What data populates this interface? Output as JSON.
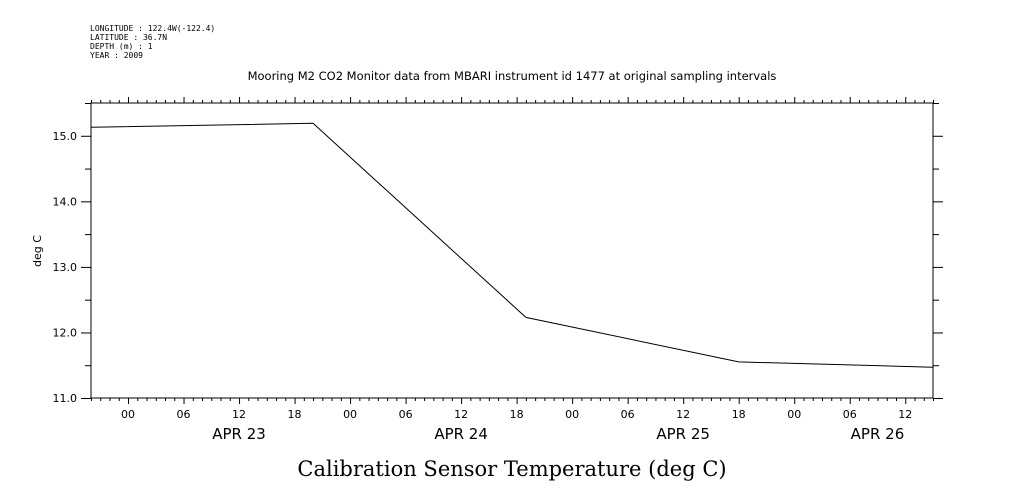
{
  "header": {
    "meta_lines": [
      "LONGITUDE : 122.4W(-122.4)",
      "LATITUDE : 36.7N",
      "DEPTH (m) : 1",
      "YEAR : 2009"
    ],
    "title": "Mooring M2 CO2 Monitor data from MBARI instrument id 1477 at original sampling intervals"
  },
  "footer": {
    "caption": "Calibration Sensor Temperature (deg C)"
  },
  "chart_data": {
    "type": "line",
    "title": "Mooring M2 CO2 Monitor data from MBARI instrument id 1477 at original sampling intervals",
    "ylabel": "deg C",
    "xlabel": "",
    "x_units": "hours since 2009-04-23 00:00",
    "xlim": [
      -4,
      87
    ],
    "ylim": [
      11.0,
      15.5
    ],
    "y_ticks": [
      11.0,
      12.0,
      13.0,
      14.0,
      15.0
    ],
    "y_tick_labels": [
      "11.0",
      "12.0",
      "13.0",
      "14.0",
      "15.0"
    ],
    "x_hour_ticks": [
      0,
      6,
      12,
      18,
      24,
      30,
      36,
      42,
      48,
      54,
      60,
      66,
      72,
      78,
      84
    ],
    "x_hour_labels": [
      "00",
      "06",
      "12",
      "18",
      "00",
      "06",
      "12",
      "18",
      "00",
      "06",
      "12",
      "18",
      "00",
      "06",
      "12"
    ],
    "day_labels": [
      {
        "label": "APR 23",
        "at_hour": 12
      },
      {
        "label": "APR 24",
        "at_hour": 36
      },
      {
        "label": "APR 25",
        "at_hour": 60
      },
      {
        "label": "APR 26",
        "at_hour": 81
      }
    ],
    "series": [
      {
        "x": [
          -4,
          20,
          43,
          66,
          87
        ],
        "y": [
          15.13,
          15.19,
          12.23,
          11.55,
          11.47
        ]
      }
    ],
    "grid": false,
    "line_color": "#000000"
  }
}
